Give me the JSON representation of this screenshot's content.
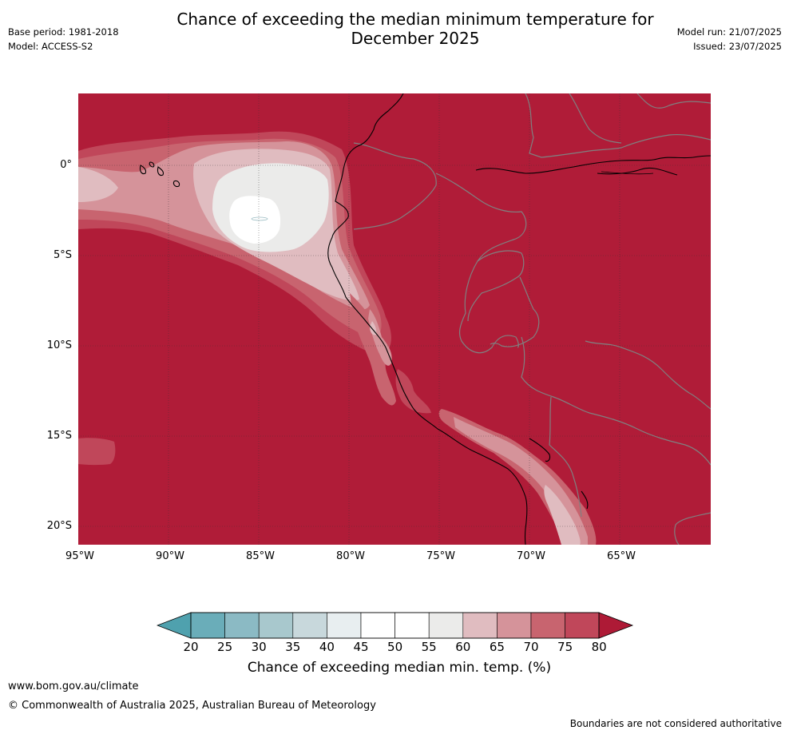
{
  "header": {
    "title_line1": "Chance of exceeding the median minimum temperature for",
    "title_line2": "December 2025",
    "base_period": "Base period: 1981-2018",
    "model": "Model: ACCESS-S2",
    "model_run": "Model run: 21/07/2025",
    "issued": "Issued: 23/07/2025"
  },
  "map": {
    "lat_labels": [
      "0°",
      "5°S",
      "10°S",
      "15°S",
      "20°S"
    ],
    "lon_labels": [
      "95°W",
      "90°W",
      "85°W",
      "80°W",
      "75°W",
      "70°W",
      "65°W"
    ],
    "dominant_category": "75-80%+",
    "colors": {
      "c80": "#b01c38",
      "c75": "#c0475a",
      "c70": "#c8646f",
      "c65": "#d5939a",
      "c60": "#e0bcc0",
      "c55": "#ebebea",
      "c50": "#ffffff",
      "coast": "#000000",
      "border": "#808080"
    }
  },
  "colorbar": {
    "ticks": [
      "20",
      "25",
      "30",
      "35",
      "40",
      "45",
      "50",
      "55",
      "60",
      "65",
      "70",
      "75",
      "80"
    ],
    "colors": [
      "#6aadb9",
      "#8bbac4",
      "#a8c8cd",
      "#c8d8dc",
      "#e8eef0",
      "#ffffff",
      "#ffffff",
      "#ebebea",
      "#e0bcc0",
      "#d5939a",
      "#c8646f",
      "#c0475a"
    ],
    "under_color": "#4fa1ae",
    "over_color": "#ae1a36",
    "label": "Chance of exceeding median min. temp. (%)"
  },
  "footer": {
    "url": "www.bom.gov.au/climate",
    "copyright": "© Commonwealth of Australia 2025, Australian Bureau of Meteorology",
    "disclaimer": "Boundaries are not considered authoritative"
  }
}
